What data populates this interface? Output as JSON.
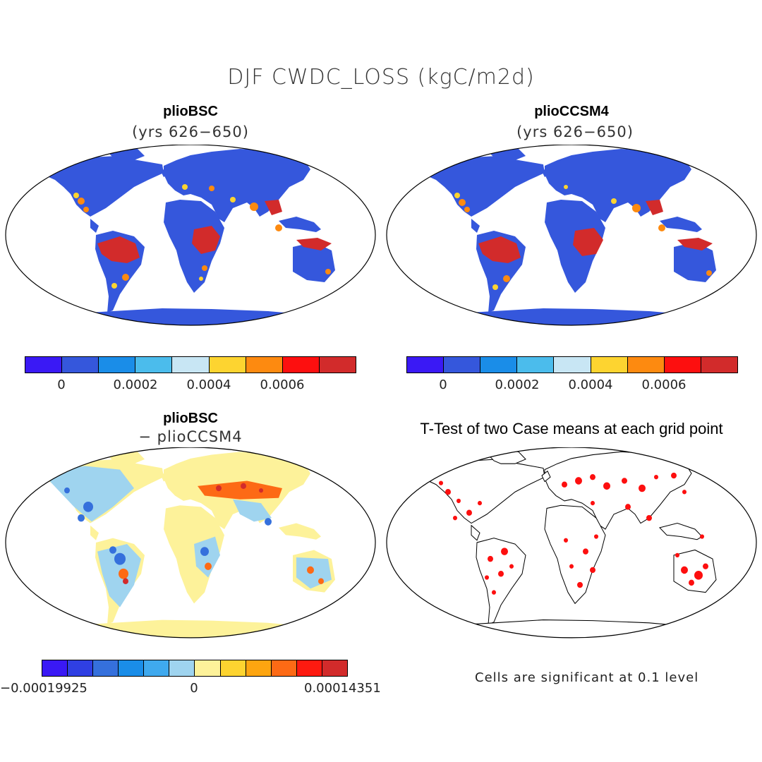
{
  "figure": {
    "title": "DJF CWDC_LOSS (kgC/m2d)"
  },
  "panels": {
    "tl": {
      "title": "plioBSC",
      "subtitle": "(yrs 626−650)"
    },
    "tr": {
      "title": "plioCCSM4",
      "subtitle": "(yrs 626−650)"
    },
    "bl": {
      "title": "plioBSC",
      "subtitle": "− plioCCSM4"
    },
    "br": {
      "title": "T-Test of two Case means at each grid point",
      "note": "Cells are significant at 0.1 level"
    }
  },
  "colorbar_top": {
    "colors": [
      "#3a19f5",
      "#3557dc",
      "#1a8de8",
      "#4bbcec",
      "#c8e6f4",
      "#fdd430",
      "#fd8a10",
      "#fd0f0f",
      "#d22b2b"
    ],
    "ticks": [
      "0",
      "0.0002",
      "0.0004",
      "0.0006"
    ]
  },
  "colorbar_bottom": {
    "colors": [
      "#3a19f5",
      "#2f3fe3",
      "#3570dc",
      "#1a8de8",
      "#3fa9ee",
      "#9fd4ef",
      "#fdf29a",
      "#fdd430",
      "#fda510",
      "#fd6a15",
      "#fd1a10",
      "#d22b2b"
    ],
    "ticks": [
      "−0.00019925",
      "0",
      "0.00014351"
    ]
  },
  "chart_data": {
    "type": "heatmap",
    "variable": "CWDC_LOSS",
    "units": "kgC/m2d",
    "season": "DJF",
    "projection": "Robinson",
    "maps": [
      {
        "title": "plioBSC",
        "years": "626-650",
        "colorbar_range": [
          -0.0001,
          0.0008
        ]
      },
      {
        "title": "plioCCSM4",
        "years": "626-650",
        "colorbar_range": [
          -0.0001,
          0.0008
        ]
      },
      {
        "title": "plioBSC − plioCCSM4",
        "colorbar_range": [
          -0.00019925,
          0.00014351
        ]
      },
      {
        "title": "T-Test of two Case means at each grid point",
        "significance_level": 0.1
      }
    ]
  }
}
